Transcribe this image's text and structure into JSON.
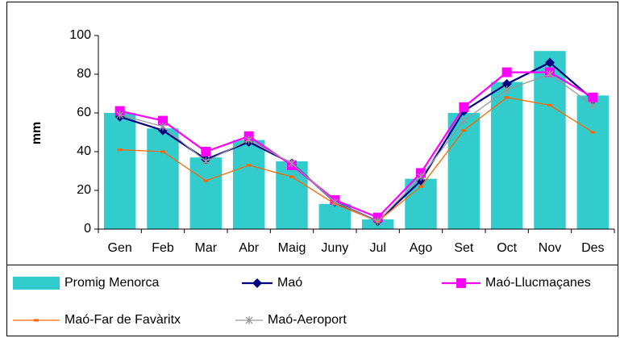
{
  "chart_data": {
    "type": "bar",
    "ylabel": "mm",
    "categories": [
      "Gen",
      "Feb",
      "Mar",
      "Abr",
      "Maig",
      "Juny",
      "Jul",
      "Ago",
      "Set",
      "Oct",
      "Nov",
      "Des"
    ],
    "series": [
      {
        "name": "Promig Menorca",
        "type": "bar",
        "color": "#33cccc",
        "values": [
          60,
          52,
          37,
          46,
          35,
          13,
          5,
          26,
          60,
          76,
          92,
          69
        ]
      },
      {
        "name": "Maó",
        "type": "line",
        "marker": "diamond",
        "color": "#000080",
        "values": [
          58,
          51,
          36,
          45,
          34,
          14,
          4,
          25,
          61,
          75,
          86,
          67
        ]
      },
      {
        "name": "Maó-Llucmaçanes",
        "type": "line",
        "marker": "square",
        "color": "#ff00ff",
        "values": [
          61,
          56,
          40,
          48,
          33,
          15,
          6,
          29,
          63,
          81,
          81,
          68
        ]
      },
      {
        "name": "Maó-Far de Favàritx",
        "type": "line",
        "marker": "dash",
        "color": "#ff6600",
        "values": [
          41,
          40,
          25,
          33,
          27,
          13,
          4,
          22,
          51,
          68,
          64,
          50
        ]
      },
      {
        "name": "Maó-Aeroport",
        "type": "line",
        "marker": "star",
        "color": "#999999",
        "values": [
          59,
          53,
          35,
          46,
          34,
          14,
          4,
          27,
          56,
          72,
          80,
          64
        ]
      }
    ],
    "ylim": [
      0,
      100
    ],
    "yticks": [
      0,
      20,
      40,
      60,
      80,
      100
    ],
    "grid": false,
    "legend": "bottom"
  }
}
